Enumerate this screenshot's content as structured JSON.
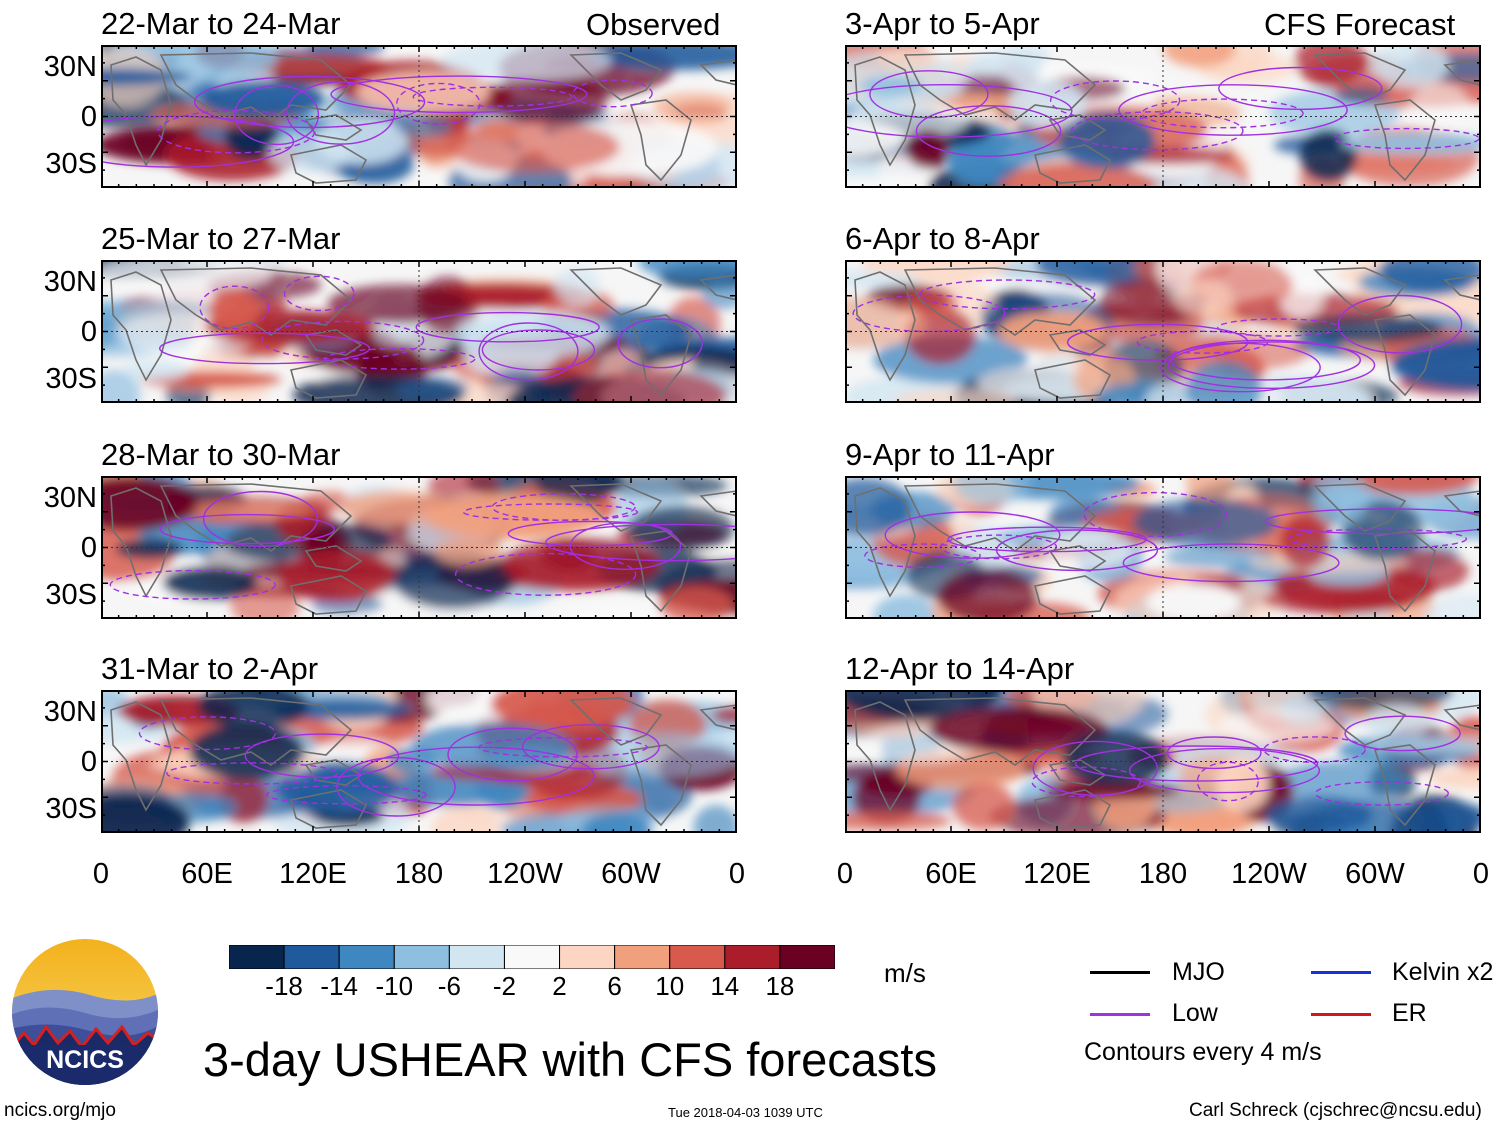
{
  "title": "3-day USHEAR with CFS forecasts",
  "columns": {
    "left_label": "Observed",
    "right_label": "CFS Forecast"
  },
  "panels": [
    {
      "title": "22-Mar to 24-Mar",
      "col": 0,
      "row": 0
    },
    {
      "title": "25-Mar to 27-Mar",
      "col": 0,
      "row": 1
    },
    {
      "title": "28-Mar to 30-Mar",
      "col": 0,
      "row": 2
    },
    {
      "title": "31-Mar to 2-Apr",
      "col": 0,
      "row": 3
    },
    {
      "title": "3-Apr to 5-Apr",
      "col": 1,
      "row": 0
    },
    {
      "title": "6-Apr to 8-Apr",
      "col": 1,
      "row": 1
    },
    {
      "title": "9-Apr to 11-Apr",
      "col": 1,
      "row": 2
    },
    {
      "title": "12-Apr to 14-Apr",
      "col": 1,
      "row": 3
    }
  ],
  "lat_labels": [
    "30N",
    "0",
    "30S"
  ],
  "lon_labels": [
    "0",
    "60E",
    "120E",
    "180",
    "120W",
    "60W",
    "0"
  ],
  "colorbar": {
    "labels": [
      "-18",
      "-14",
      "-10",
      "-6",
      "-2",
      "2",
      "6",
      "10",
      "14",
      "18"
    ],
    "colors": [
      "#08254e",
      "#1f5a9c",
      "#3f87c0",
      "#8fbfe0",
      "#d2e6f2",
      "#f9f9f9",
      "#fcd6c2",
      "#f1a07e",
      "#d75a4d",
      "#ab1d2b",
      "#6a0022"
    ],
    "units": "m/s"
  },
  "legend": {
    "items": [
      {
        "label": "MJO",
        "color": "#000000"
      },
      {
        "label": "Kelvin x2",
        "color": "#1a2fd6"
      },
      {
        "label": "Low",
        "color": "#a030e0"
      },
      {
        "label": "ER",
        "color": "#d01818"
      }
    ],
    "note": "Contours every 4 m/s"
  },
  "logo_text": "NCICS",
  "footer": {
    "url": "ncics.org/mjo",
    "timestamp": "Tue 2018-04-03 1039 UTC",
    "author": "Carl Schreck (cjschrec@ncsu.edu)"
  }
}
